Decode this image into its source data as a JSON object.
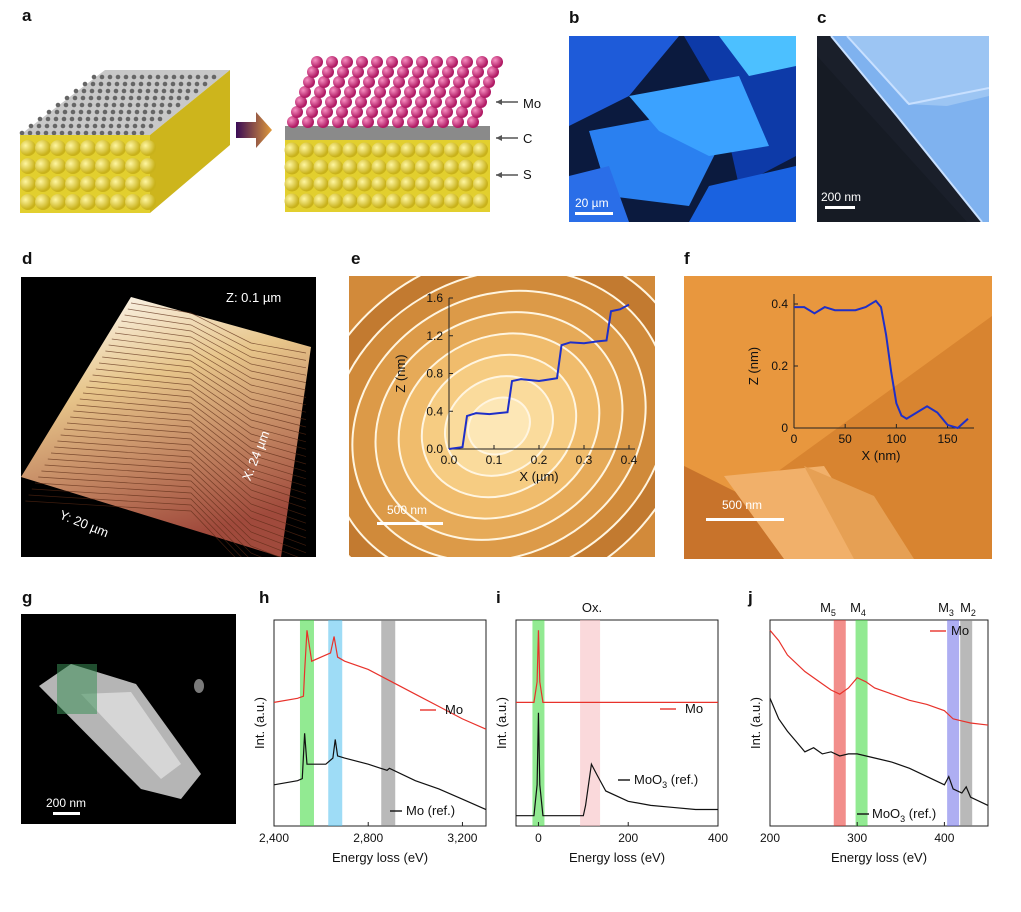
{
  "panels": {
    "a": {
      "letter": "a",
      "labels": [
        "Mo",
        "C",
        "S"
      ]
    },
    "b": {
      "letter": "b",
      "scale": "20 µm"
    },
    "c": {
      "letter": "c",
      "scale": "200 nm"
    },
    "d": {
      "letter": "d",
      "z": "Z: 0.1 µm",
      "x": "X: 24 µm",
      "y": "Y: 20 µm"
    },
    "e": {
      "letter": "e",
      "scale": "500 nm"
    },
    "f": {
      "letter": "f",
      "scale": "500 nm"
    },
    "g": {
      "letter": "g",
      "scale": "200 nm"
    },
    "h": {
      "letter": "h"
    },
    "i": {
      "letter": "i"
    },
    "j": {
      "letter": "j"
    }
  },
  "colors": {
    "red": "#e8322b",
    "black": "#111111",
    "blue": "#1f2fc8",
    "green": "#38d838",
    "cyan": "#4fc0ee",
    "gray": "#7f7f7f",
    "pink": "#f6b9bd",
    "purple": "#6b6be8"
  },
  "chart_data": [
    {
      "panel": "e",
      "type": "line",
      "xlabel": "X (µm)",
      "ylabel": "Z (nm)",
      "xlim": [
        0,
        0.4
      ],
      "ylim": [
        0,
        1.6
      ],
      "xticks": [
        "0.0",
        "0.1",
        "0.2",
        "0.3",
        "0.4"
      ],
      "yticks": [
        "0.0",
        "0.4",
        "0.8",
        "1.2",
        "1.6"
      ],
      "series": [
        {
          "x": [
            0,
            0.03,
            0.04,
            0.06,
            0.09,
            0.11,
            0.13,
            0.14,
            0.16,
            0.2,
            0.24,
            0.25,
            0.27,
            0.3,
            0.33,
            0.35,
            0.36,
            0.38,
            0.4
          ],
          "y": [
            0.0,
            0.02,
            0.35,
            0.38,
            0.37,
            0.38,
            0.39,
            0.72,
            0.74,
            0.72,
            0.75,
            1.1,
            1.13,
            1.12,
            1.14,
            1.15,
            1.46,
            1.48,
            1.53
          ]
        }
      ]
    },
    {
      "panel": "f",
      "type": "line",
      "xlabel": "X (nm)",
      "ylabel": "Z (nm)",
      "xlim": [
        0,
        170
      ],
      "ylim": [
        0,
        0.4
      ],
      "xticks": [
        "0",
        "50",
        "100",
        "150"
      ],
      "yticks": [
        "0",
        "0.2",
        "0.4"
      ],
      "series": [
        {
          "x": [
            0,
            10,
            20,
            30,
            40,
            50,
            60,
            70,
            80,
            85,
            90,
            95,
            100,
            105,
            110,
            120,
            130,
            140,
            150,
            160,
            170
          ],
          "y": [
            0.39,
            0.39,
            0.37,
            0.39,
            0.38,
            0.38,
            0.38,
            0.39,
            0.41,
            0.39,
            0.3,
            0.18,
            0.08,
            0.04,
            0.03,
            0.05,
            0.07,
            0.05,
            0.01,
            0.0,
            0.03
          ]
        }
      ]
    },
    {
      "panel": "h",
      "type": "line",
      "xlabel": "Energy loss (eV)",
      "ylabel": "Int. (a.u.)",
      "xlim": [
        2400,
        3300
      ],
      "xticks": [
        "2,400",
        "2,800",
        "3,200"
      ],
      "bands": [
        {
          "x": 2540,
          "color": "green"
        },
        {
          "x": 2660,
          "color": "cyan"
        },
        {
          "x": 2885,
          "color": "gray"
        }
      ],
      "series": [
        {
          "name": "Mo",
          "color": "red",
          "x": [
            2400,
            2500,
            2525,
            2530,
            2540,
            2560,
            2600,
            2640,
            2655,
            2670,
            2700,
            2800,
            2900,
            3000,
            3100,
            3200,
            3300
          ],
          "y": [
            0.6,
            0.62,
            0.63,
            0.75,
            0.95,
            0.8,
            0.82,
            0.84,
            0.92,
            0.82,
            0.8,
            0.76,
            0.7,
            0.64,
            0.58,
            0.52,
            0.47
          ]
        },
        {
          "name": "Mo (ref.)",
          "color": "black",
          "x": [
            2400,
            2500,
            2520,
            2530,
            2540,
            2580,
            2620,
            2650,
            2660,
            2670,
            2700,
            2800,
            2880,
            2890,
            3000,
            3100,
            3200,
            3300
          ],
          "y": [
            0.2,
            0.22,
            0.23,
            0.45,
            0.3,
            0.3,
            0.3,
            0.33,
            0.42,
            0.34,
            0.33,
            0.3,
            0.27,
            0.28,
            0.22,
            0.18,
            0.13,
            0.08
          ]
        }
      ]
    },
    {
      "panel": "i",
      "type": "line",
      "xlabel": "Energy loss (eV)",
      "ylabel": "Int. (a.u.)",
      "xlim": [
        -50,
        400
      ],
      "xticks": [
        "0",
        "200",
        "400"
      ],
      "annotation": "Ox.",
      "bands": [
        {
          "x": 0,
          "color": "green"
        },
        {
          "x": 115,
          "color": "pink"
        }
      ],
      "series": [
        {
          "name": "Mo",
          "color": "red",
          "x": [
            -50,
            -10,
            -3,
            0,
            3,
            10,
            100,
            200,
            300,
            400
          ],
          "y": [
            0.6,
            0.6,
            0.7,
            0.95,
            0.7,
            0.6,
            0.6,
            0.6,
            0.6,
            0.6
          ]
        },
        {
          "name": "MoO3 (ref.)",
          "color": "black",
          "x": [
            -50,
            -10,
            -3,
            0,
            3,
            10,
            100,
            105,
            118,
            130,
            150,
            200,
            250,
            300,
            350,
            400
          ],
          "y": [
            0.05,
            0.05,
            0.2,
            0.55,
            0.2,
            0.05,
            0.05,
            0.1,
            0.3,
            0.25,
            0.17,
            0.12,
            0.1,
            0.09,
            0.08,
            0.08
          ]
        }
      ]
    },
    {
      "panel": "j",
      "type": "line",
      "xlabel": "Energy loss (eV)",
      "ylabel": "Int. (a.u.)",
      "xlim": [
        200,
        450
      ],
      "xticks": [
        "200",
        "300",
        "400"
      ],
      "band_labels": [
        "M5",
        "M4",
        "M3",
        "M2"
      ],
      "bands": [
        {
          "x": 280,
          "color": "red"
        },
        {
          "x": 305,
          "color": "green"
        },
        {
          "x": 410,
          "color": "purple"
        },
        {
          "x": 425,
          "color": "gray"
        }
      ],
      "series": [
        {
          "name": "Mo",
          "color": "red",
          "x": [
            200,
            210,
            220,
            240,
            260,
            270,
            280,
            290,
            300,
            310,
            320,
            340,
            360,
            380,
            400,
            410,
            420,
            430,
            450
          ],
          "y": [
            0.95,
            0.9,
            0.83,
            0.75,
            0.69,
            0.66,
            0.64,
            0.67,
            0.72,
            0.7,
            0.67,
            0.64,
            0.61,
            0.59,
            0.56,
            0.52,
            0.51,
            0.5,
            0.49
          ]
        },
        {
          "name": "MoO3 (ref.)",
          "color": "black",
          "x": [
            200,
            210,
            220,
            230,
            240,
            250,
            260,
            270,
            280,
            290,
            300,
            320,
            340,
            360,
            380,
            400,
            405,
            410,
            420,
            425,
            430,
            450
          ],
          "y": [
            0.62,
            0.52,
            0.46,
            0.41,
            0.36,
            0.38,
            0.35,
            0.36,
            0.34,
            0.35,
            0.35,
            0.33,
            0.31,
            0.28,
            0.24,
            0.2,
            0.24,
            0.18,
            0.16,
            0.19,
            0.14,
            0.1
          ]
        }
      ]
    }
  ]
}
